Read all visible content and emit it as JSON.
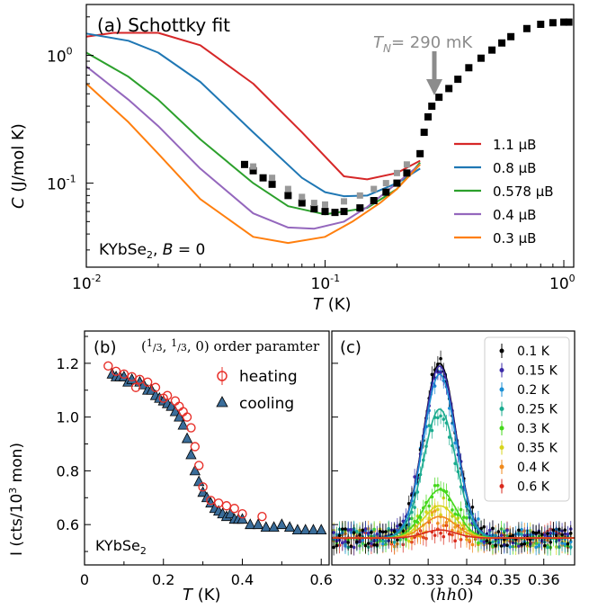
{
  "chart_data": [
    {
      "type": "line",
      "panel_label": "(a) Schottky fit",
      "xlabel": "T (K)",
      "ylabel": "C (J/mol K)",
      "x_scale": "log",
      "y_scale": "log",
      "xlim": [
        0.01,
        1.1
      ],
      "ylim": [
        0.022,
        2.5
      ],
      "x_ticks": [
        {
          "v": 0.01,
          "label": "10^-2"
        },
        {
          "v": 0.1,
          "label": "10^-1"
        },
        {
          "v": 1,
          "label": "10^0"
        }
      ],
      "y_ticks": [
        {
          "v": 0.1,
          "label": "10^-1"
        },
        {
          "v": 1,
          "label": "10^0"
        }
      ],
      "annotation": {
        "text": "T_N = 290 mK",
        "x": 0.29
      },
      "sample_label": "KYbSe2, B = 0",
      "legend_position": "center-right",
      "series": [
        {
          "name": "1.1 μB",
          "color": "#d62728",
          "x": [
            0.01,
            0.013,
            0.02,
            0.03,
            0.05,
            0.08,
            0.12,
            0.15,
            0.2,
            0.25
          ],
          "y": [
            1.4,
            1.5,
            1.5,
            1.2,
            0.6,
            0.25,
            0.113,
            0.107,
            0.12,
            0.15
          ]
        },
        {
          "name": "0.8 μB",
          "color": "#1f77b4",
          "x": [
            0.01,
            0.015,
            0.02,
            0.03,
            0.05,
            0.08,
            0.1,
            0.12,
            0.15,
            0.2,
            0.25
          ],
          "y": [
            1.48,
            1.3,
            1.05,
            0.62,
            0.25,
            0.11,
            0.085,
            0.079,
            0.08,
            0.1,
            0.13
          ]
        },
        {
          "name": "0.578 μB",
          "color": "#2ca02c",
          "x": [
            0.01,
            0.015,
            0.02,
            0.03,
            0.05,
            0.07,
            0.1,
            0.15,
            0.2,
            0.25
          ],
          "y": [
            1.05,
            0.68,
            0.45,
            0.22,
            0.1,
            0.066,
            0.057,
            0.064,
            0.09,
            0.145
          ]
        },
        {
          "name": "0.4 μB",
          "color": "#9467bd",
          "x": [
            0.01,
            0.015,
            0.02,
            0.03,
            0.05,
            0.07,
            0.09,
            0.12,
            0.15,
            0.2,
            0.25
          ],
          "y": [
            0.82,
            0.45,
            0.28,
            0.13,
            0.058,
            0.045,
            0.044,
            0.05,
            0.065,
            0.1,
            0.14
          ]
        },
        {
          "name": "0.3 μB",
          "color": "#ff7f0e",
          "x": [
            0.01,
            0.015,
            0.02,
            0.03,
            0.05,
            0.07,
            0.1,
            0.13,
            0.17,
            0.2,
            0.25
          ],
          "y": [
            0.6,
            0.3,
            0.17,
            0.075,
            0.038,
            0.034,
            0.038,
            0.05,
            0.07,
            0.09,
            0.14
          ]
        },
        {
          "name": "data",
          "color": "#000000",
          "marker": "square",
          "x": [
            0.046,
            0.05,
            0.055,
            0.06,
            0.07,
            0.08,
            0.09,
            0.1,
            0.11,
            0.12,
            0.14,
            0.16,
            0.18,
            0.2,
            0.22,
            0.25,
            0.26,
            0.27,
            0.28,
            0.3,
            0.33,
            0.36,
            0.4,
            0.45,
            0.5,
            0.55,
            0.6,
            0.7,
            0.8,
            0.9,
            1.0,
            1.05
          ],
          "y": [
            0.14,
            0.125,
            0.11,
            0.098,
            0.08,
            0.07,
            0.063,
            0.06,
            0.059,
            0.06,
            0.064,
            0.073,
            0.085,
            0.1,
            0.12,
            0.17,
            0.25,
            0.33,
            0.4,
            0.47,
            0.55,
            0.65,
            0.8,
            0.95,
            1.1,
            1.25,
            1.4,
            1.62,
            1.75,
            1.8,
            1.82,
            1.82
          ]
        },
        {
          "name": "data (grey)",
          "color": "#999999",
          "marker": "square",
          "x": [
            0.05,
            0.06,
            0.07,
            0.08,
            0.09,
            0.1,
            0.12,
            0.14,
            0.16,
            0.18,
            0.2,
            0.22
          ],
          "y": [
            0.135,
            0.11,
            0.09,
            0.078,
            0.07,
            0.068,
            0.072,
            0.08,
            0.09,
            0.1,
            0.12,
            0.14
          ]
        }
      ]
    },
    {
      "type": "scatter",
      "panel_label": "(b)",
      "title": "(1/3, 1/3, 0) order paramter",
      "xlabel": "T (K)",
      "ylabel": "I (cts/10^3 mon)",
      "xlim": [
        0,
        0.62
      ],
      "ylim": [
        0.45,
        1.32
      ],
      "x_ticks": [
        0,
        0.2,
        0.4,
        0.6
      ],
      "y_ticks": [
        0.6,
        0.8,
        1.0,
        1.2
      ],
      "sample_label": "KYbSe2",
      "legend_position": "upper-right",
      "series": [
        {
          "name": "heating",
          "color": "#e8302a",
          "marker": "open-circle",
          "x": [
            0.06,
            0.08,
            0.1,
            0.12,
            0.13,
            0.14,
            0.16,
            0.18,
            0.2,
            0.21,
            0.23,
            0.24,
            0.25,
            0.26,
            0.27,
            0.28,
            0.29,
            0.3,
            0.32,
            0.34,
            0.36,
            0.38,
            0.4,
            0.45
          ],
          "y": [
            1.19,
            1.17,
            1.16,
            1.15,
            1.11,
            1.14,
            1.13,
            1.11,
            1.07,
            1.08,
            1.06,
            1.04,
            1.02,
            1.0,
            0.96,
            0.89,
            0.82,
            0.74,
            0.69,
            0.68,
            0.67,
            0.66,
            0.64,
            0.63
          ]
        },
        {
          "name": "cooling",
          "color": "#3a6d9a",
          "marker": "triangle",
          "x": [
            0.07,
            0.08,
            0.09,
            0.1,
            0.11,
            0.12,
            0.14,
            0.15,
            0.16,
            0.17,
            0.18,
            0.19,
            0.2,
            0.21,
            0.22,
            0.23,
            0.24,
            0.25,
            0.26,
            0.27,
            0.28,
            0.29,
            0.3,
            0.31,
            0.32,
            0.33,
            0.34,
            0.35,
            0.36,
            0.37,
            0.38,
            0.39,
            0.4,
            0.42,
            0.44,
            0.46,
            0.48,
            0.5,
            0.52,
            0.54,
            0.56,
            0.58,
            0.6
          ],
          "y": [
            1.16,
            1.15,
            1.15,
            1.15,
            1.13,
            1.14,
            1.13,
            1.12,
            1.1,
            1.1,
            1.08,
            1.07,
            1.06,
            1.05,
            1.04,
            1.02,
            1.0,
            0.97,
            0.92,
            0.86,
            0.8,
            0.76,
            0.72,
            0.7,
            0.68,
            0.66,
            0.65,
            0.64,
            0.63,
            0.64,
            0.62,
            0.62,
            0.62,
            0.6,
            0.6,
            0.59,
            0.59,
            0.6,
            0.59,
            0.58,
            0.58,
            0.58,
            0.58
          ]
        }
      ]
    },
    {
      "type": "scatter",
      "panel_label": "(c)",
      "xlabel": "(hh0)",
      "xlim": [
        0.305,
        0.368
      ],
      "ylim": [
        0.45,
        1.32
      ],
      "x_ticks": [
        0.32,
        0.33,
        0.34,
        0.35,
        0.36
      ],
      "legend_position": "upper-right",
      "fit": "gaussian",
      "peak_center": 0.333,
      "peak_width": 0.0042,
      "background": 0.55,
      "series": [
        {
          "name": "0.1 K",
          "color": "#000000",
          "amplitude": 0.65
        },
        {
          "name": "0.15 K",
          "color": "#3b2aa8",
          "amplitude": 0.64
        },
        {
          "name": "0.2 K",
          "color": "#1b8fd4",
          "amplitude": 0.61
        },
        {
          "name": "0.25 K",
          "color": "#1bab8f",
          "amplitude": 0.48
        },
        {
          "name": "0.3 K",
          "color": "#45d81c",
          "amplitude": 0.18
        },
        {
          "name": "0.35 K",
          "color": "#d7d51c",
          "amplitude": 0.12
        },
        {
          "name": "0.4 K",
          "color": "#f08a1c",
          "amplitude": 0.08
        },
        {
          "name": "0.6 K",
          "color": "#d92a1c",
          "amplitude": 0.03
        }
      ]
    }
  ]
}
